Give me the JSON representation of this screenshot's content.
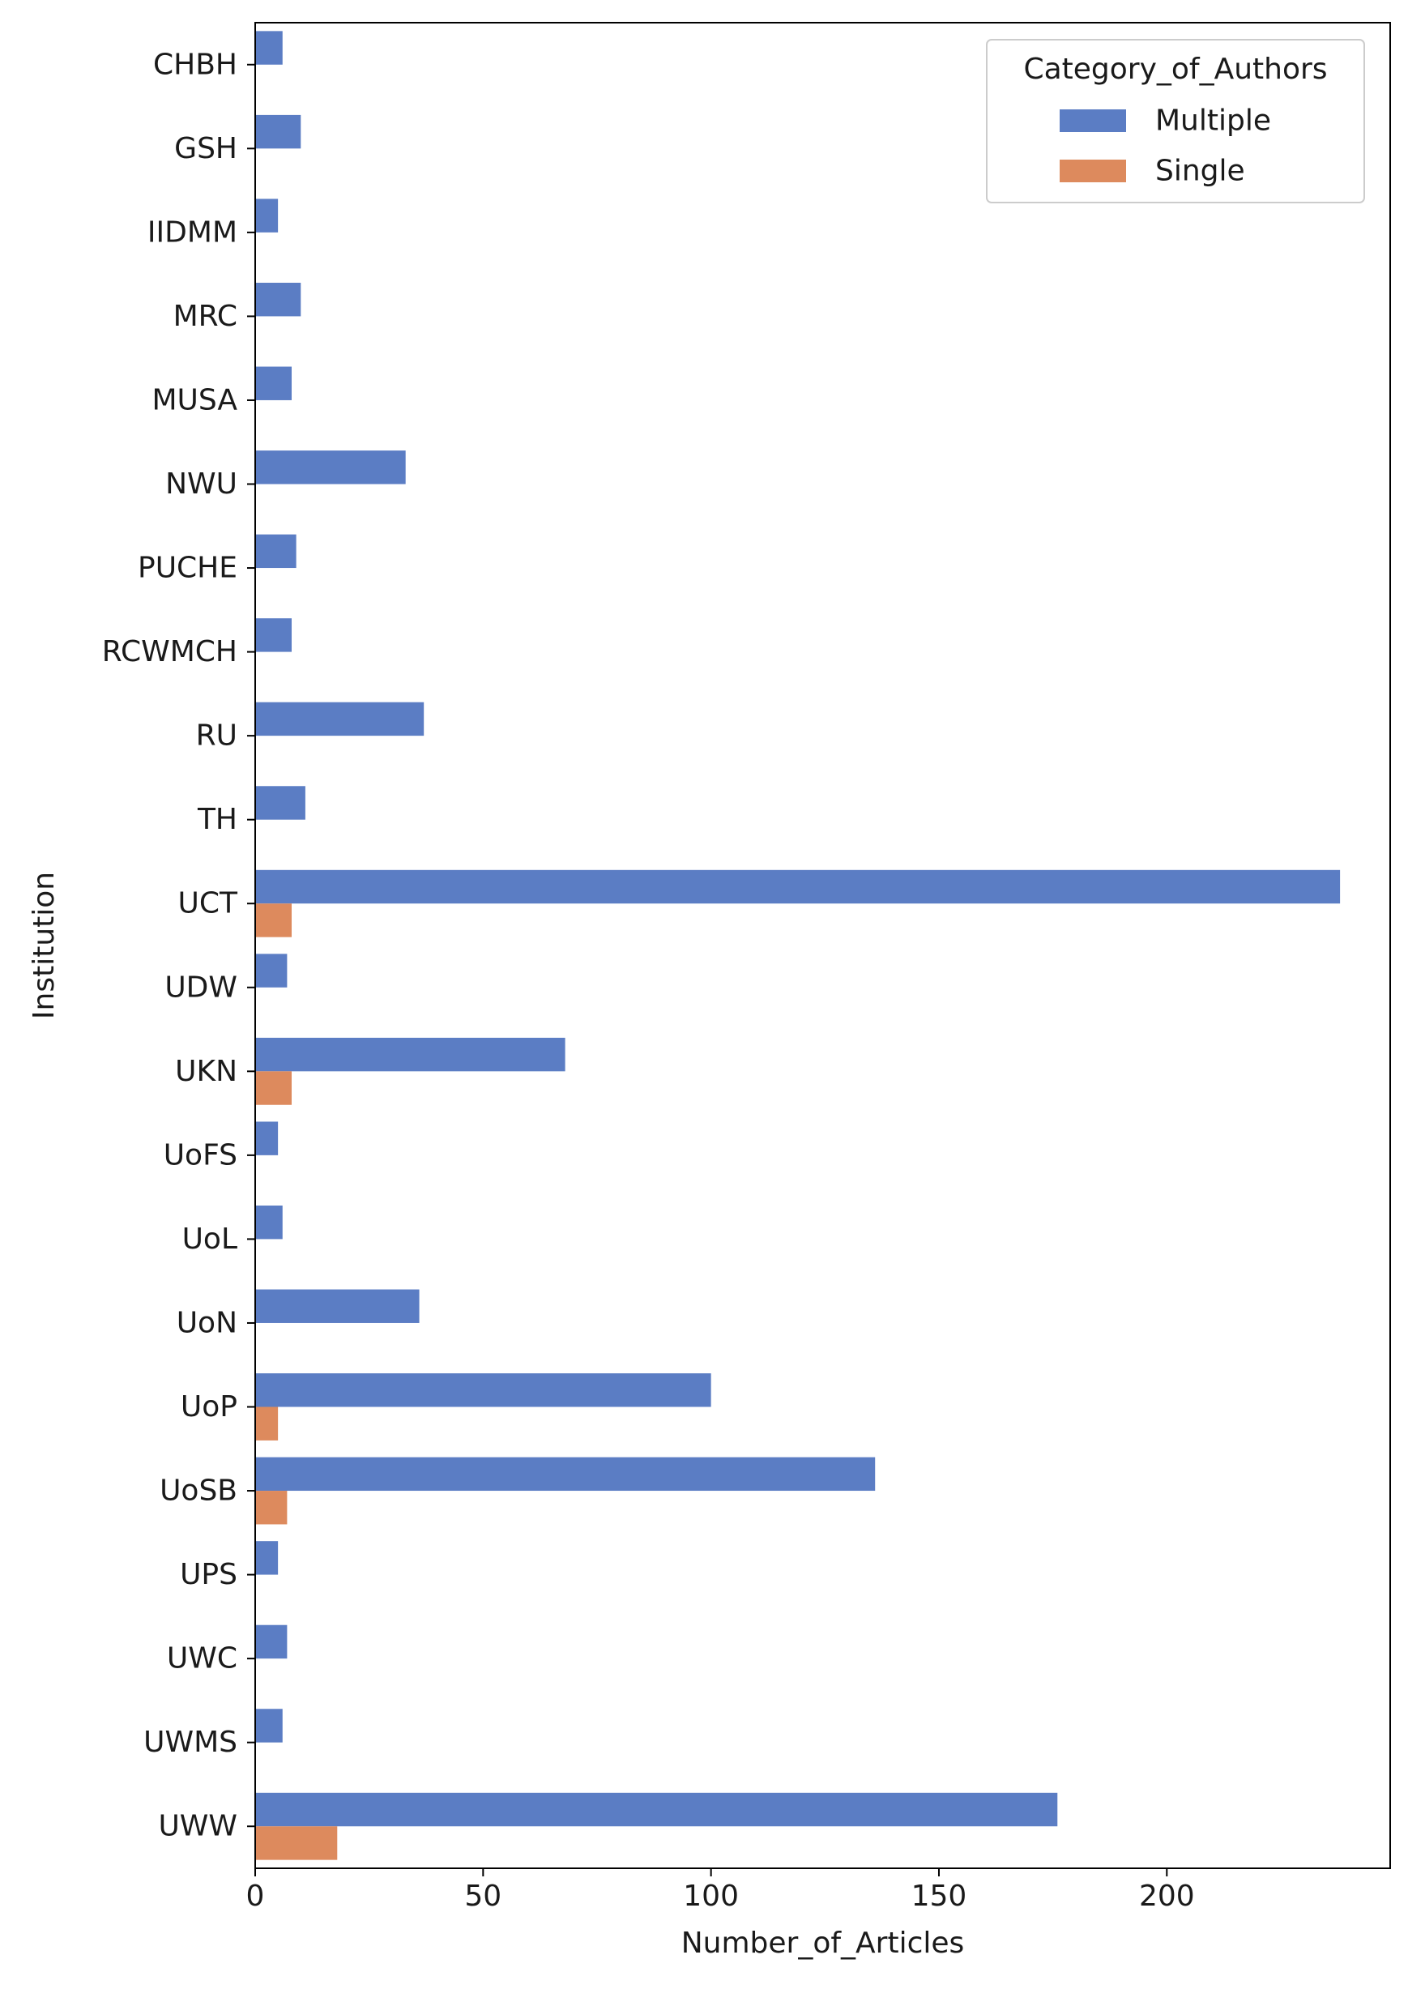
{
  "chart_data": {
    "type": "bar",
    "orientation": "horizontal",
    "title": "",
    "xlabel": "Number_of_Articles",
    "ylabel": "Institution",
    "xlim": [
      0,
      249
    ],
    "xticks": [
      0,
      50,
      100,
      150,
      200
    ],
    "grid": false,
    "legend": {
      "title": "Category_of_Authors",
      "position": "top-right"
    },
    "categories": [
      "CHBH",
      "GSH",
      "IIDMM",
      "MRC",
      "MUSA",
      "NWU",
      "PUCHE",
      "RCWMCH",
      "RU",
      "TH",
      "UCT",
      "UDW",
      "UKN",
      "UoFS",
      "UoL",
      "UoN",
      "UoP",
      "UoSB",
      "UPS",
      "UWC",
      "UWMS",
      "UWW"
    ],
    "series": [
      {
        "name": "Multiple",
        "color": "#5b7dc4",
        "values": [
          6,
          10,
          5,
          10,
          8,
          33,
          9,
          8,
          37,
          11,
          238,
          7,
          68,
          5,
          6,
          36,
          100,
          136,
          5,
          7,
          6,
          176
        ]
      },
      {
        "name": "Single",
        "color": "#dd8a5d",
        "values": [
          0,
          0,
          0,
          0,
          0,
          0,
          0,
          0,
          0,
          0,
          8,
          0,
          8,
          0,
          0,
          0,
          5,
          7,
          0,
          0,
          0,
          18
        ]
      }
    ]
  }
}
